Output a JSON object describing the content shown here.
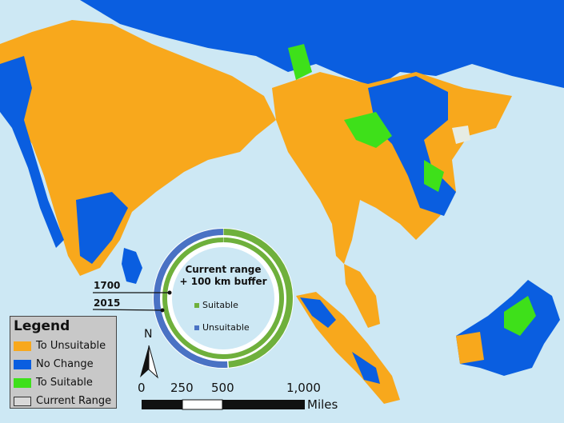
{
  "legend": {
    "title": "Legend",
    "items": [
      {
        "label": "To Unsuitable",
        "color": "#f8a81c"
      },
      {
        "label": "No Change",
        "color": "#0a5ee0"
      },
      {
        "label": "To Suitable",
        "color": "#3ee01a"
      },
      {
        "label": "Current Range",
        "color": "#d8d8d8"
      }
    ]
  },
  "donut": {
    "title_line1": "Current range",
    "title_line2": "+ 100 km buffer",
    "categories": [
      {
        "label": "Suitable",
        "color": "#6fb03c"
      },
      {
        "label": "Unsuitable",
        "color": "#4a72c4"
      }
    ],
    "rings": [
      {
        "year": "1700",
        "unsuitable_fraction": 0.0
      },
      {
        "year": "2015",
        "unsuitable_fraction": 0.51
      }
    ]
  },
  "north_arrow": {
    "label": "N"
  },
  "scale_bar": {
    "ticks": [
      "0",
      "250",
      "500",
      "1,000"
    ],
    "unit": "Miles"
  },
  "colors": {
    "sea": "#cde8f4",
    "land_other": "#e6ece4"
  }
}
